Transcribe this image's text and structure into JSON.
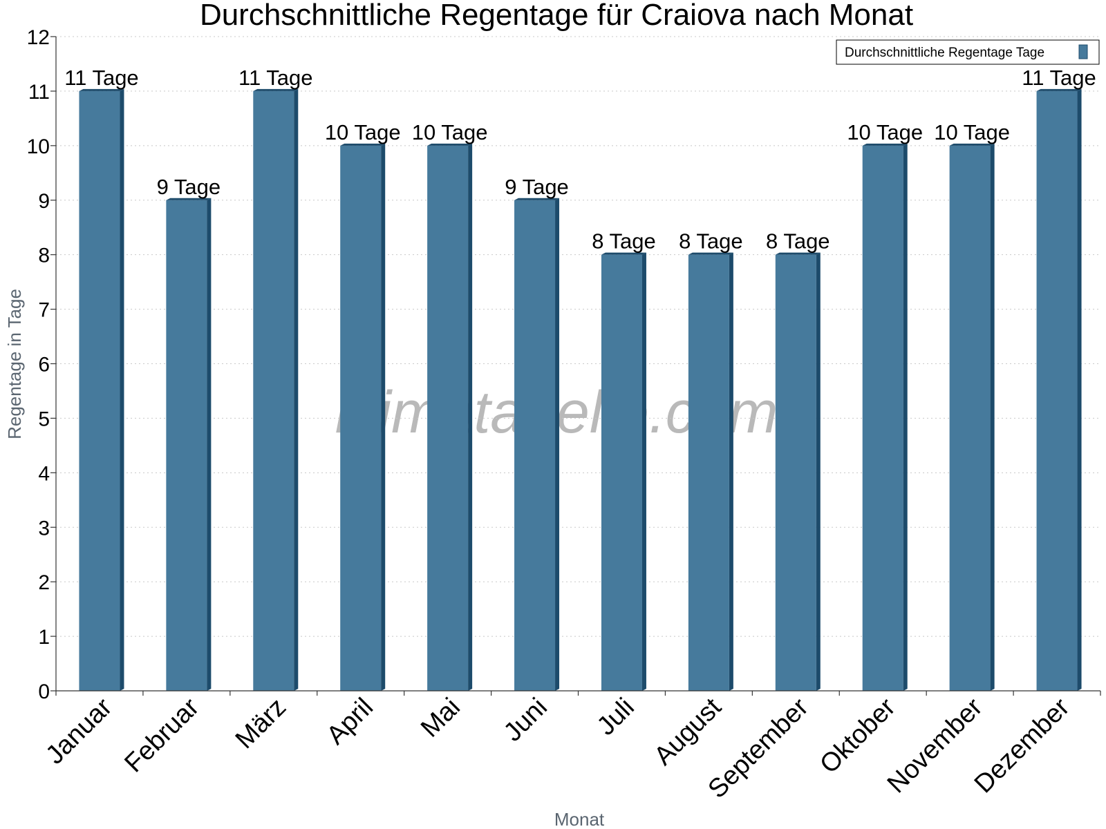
{
  "chart_data": {
    "type": "bar",
    "title": "Durchschnittliche Regentage für Craiova nach Monat",
    "xlabel": "Monat",
    "ylabel": "Regentage in Tage",
    "ylim": [
      0,
      12
    ],
    "yticks": [
      0,
      1,
      2,
      3,
      4,
      5,
      6,
      7,
      8,
      9,
      10,
      11,
      12
    ],
    "grid": true,
    "legend_position": "top-right",
    "categories": [
      "Januar",
      "Februar",
      "März",
      "April",
      "Mai",
      "Juni",
      "Juli",
      "August",
      "September",
      "Oktober",
      "November",
      "Dezember"
    ],
    "series": [
      {
        "name": "Durchschnittliche Regentage Tage",
        "values": [
          11,
          9,
          11,
          10,
          10,
          9,
          8,
          8,
          8,
          10,
          10,
          11
        ],
        "data_labels": [
          "11 Tage",
          "9 Tage",
          "11 Tage",
          "10 Tage",
          "10 Tage",
          "9 Tage",
          "8 Tage",
          "8 Tage",
          "8 Tage",
          "10 Tage",
          "10 Tage",
          "11 Tage"
        ],
        "color": "#467a9c",
        "edge_color": "#1d4b6b"
      }
    ]
  },
  "watermark": "klimatabelle.com"
}
